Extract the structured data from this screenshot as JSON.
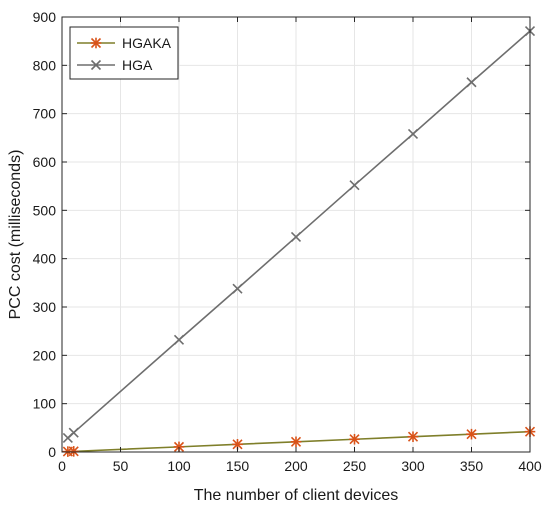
{
  "chart_data": {
    "type": "line",
    "xlabel": "The number of client devices",
    "ylabel": "PCC cost (milliseconds)",
    "xlim": [
      0,
      400
    ],
    "ylim": [
      0,
      900
    ],
    "xticks": [
      0,
      50,
      100,
      150,
      200,
      250,
      300,
      350,
      400
    ],
    "yticks": [
      0,
      100,
      200,
      300,
      400,
      500,
      600,
      700,
      800,
      900
    ],
    "grid": true,
    "legend_position": "top-left",
    "series": [
      {
        "name": "HGAKA",
        "color": "#d95319",
        "line_color": "#7f7f2a",
        "marker": "asterisk",
        "x": [
          5,
          10,
          100,
          150,
          200,
          250,
          300,
          350,
          400
        ],
        "y": [
          0.8,
          1.3,
          10.6,
          15.9,
          21.1,
          26.4,
          31.6,
          36.9,
          42.1
        ]
      },
      {
        "name": "HGA",
        "color": "#6e6e6e",
        "line_color": "#6e6e6e",
        "marker": "x",
        "x": [
          5,
          10,
          100,
          150,
          200,
          250,
          300,
          350,
          400
        ],
        "y": [
          29,
          40,
          232,
          338,
          445,
          552,
          658,
          765,
          871
        ]
      }
    ]
  }
}
